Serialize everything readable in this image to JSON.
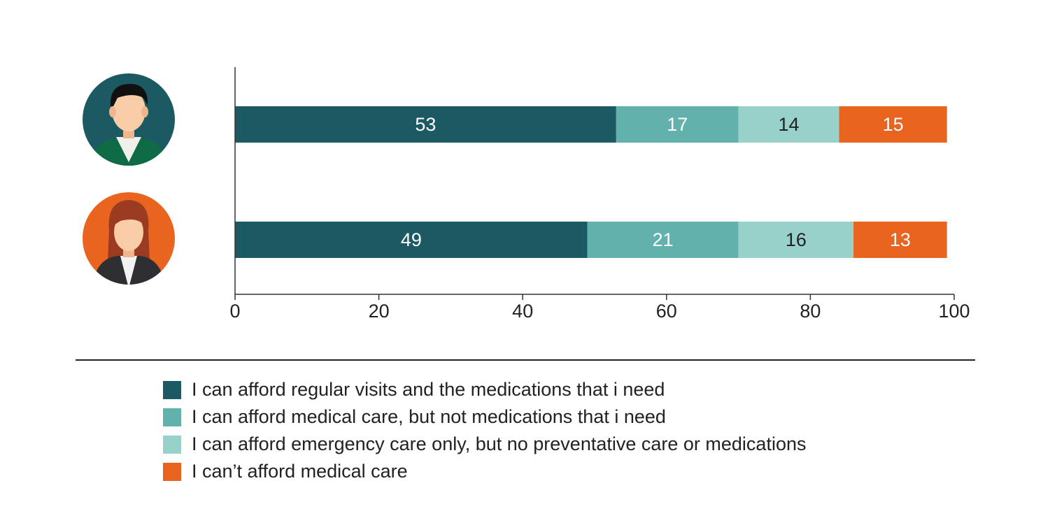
{
  "chart_data": {
    "type": "bar",
    "orientation": "horizontal",
    "stacked": true,
    "categories": [
      "Men",
      "Women"
    ],
    "category_icons": [
      "male-avatar-icon",
      "female-avatar-icon"
    ],
    "series": [
      {
        "name": "I can afford regular visits and the medications that i need",
        "values": [
          53,
          49
        ],
        "color": "#1b5a63",
        "label_color": "#ffffff"
      },
      {
        "name": "I can afford medical care, but not medications that i need",
        "values": [
          17,
          21
        ],
        "color": "#63b1ad",
        "label_color": "#ffffff"
      },
      {
        "name": "I can afford emergency care only, but no preventative care or medications",
        "values": [
          14,
          16
        ],
        "color": "#98d1c9",
        "label_color": "#222222"
      },
      {
        "name": "I can’t afford medical care",
        "values": [
          15,
          13
        ],
        "color": "#e8641f",
        "label_color": "#ffffff"
      }
    ],
    "xlim": [
      0,
      100
    ],
    "xticks": [
      0,
      20,
      40,
      60,
      80,
      100
    ],
    "legend_position": "bottom",
    "grid": false
  },
  "colors": {
    "male_avatar_bg": "#1b5a63",
    "female_avatar_bg": "#e8641f",
    "skin": "#f9cda7",
    "axis": "#333333"
  }
}
